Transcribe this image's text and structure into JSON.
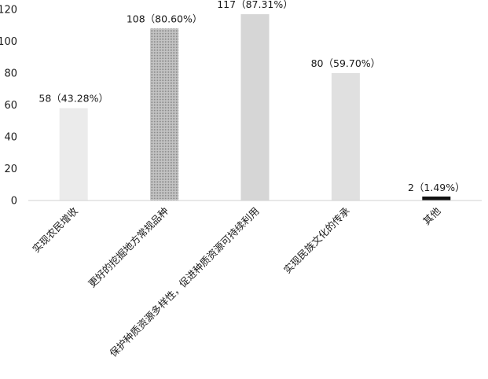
{
  "chart_data": {
    "type": "bar",
    "categories": [
      "实现农民增收",
      "更好的挖掘地方常规品种",
      "保护种质资源多样性，促进种质资源可持续利用",
      "实现民族文化的传承",
      "其他"
    ],
    "values": [
      58,
      108,
      117,
      80,
      2
    ],
    "data_labels": [
      "58（43.28%）",
      "108（80.60%）",
      "117（87.31%）",
      "80（59.70%）",
      "2（1.49%）"
    ],
    "bar_colors": [
      "#ebebeb",
      "#a6a6a6",
      "#d6d6d6",
      "#e0e0e0",
      "#111111"
    ],
    "ylim": [
      0,
      120
    ],
    "yticks": [
      0,
      20,
      40,
      60,
      80,
      100,
      120
    ],
    "title": "",
    "xlabel": "",
    "ylabel": "",
    "grid": false,
    "legend": "none"
  }
}
